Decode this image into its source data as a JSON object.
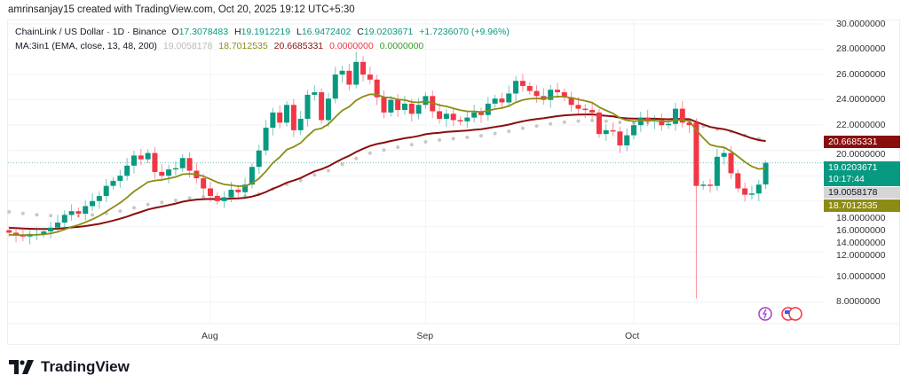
{
  "credit": "amrinsanjay15 created with TradingView.com, Oct 20, 2025 19:12 UTC+5:30",
  "legend": {
    "symbol": "ChainLink / US Dollar · 1D · Binance",
    "o_label": "O",
    "o": "17.3078483",
    "h_label": "H",
    "h": "19.1912219",
    "l_label": "L",
    "l": "16.9472402",
    "c_label": "C",
    "c": "19.0203671",
    "change": "+1.7236070 (+9.96%)",
    "ma_title": "MA:3in1 (EMA, close, 13, 48, 200)",
    "ma_values": [
      "19.0058178",
      "18.7012535",
      "20.6685331",
      "0.0000000",
      "0.0000000"
    ]
  },
  "badges": {
    "ema48": "20.6685331",
    "last_price": "19.0203671",
    "countdown": "10:17:44",
    "ema200": "19.0058178",
    "ema13": "18.7012535"
  },
  "logo_text": "TradingView",
  "colors": {
    "up": "#089981",
    "down": "#f23645",
    "ema13": "#8c8c14",
    "ema48": "#8b0e0e",
    "ema200": "#c8c8c8"
  },
  "chart_data": {
    "type": "candlestick",
    "title": "ChainLink / US Dollar · 1D · Binance",
    "y_ticks": [
      "30.0000000",
      "28.0000000",
      "26.0000000",
      "24.0000000",
      "22.0000000",
      "20.0000000",
      "18.0000000",
      "16.0000000",
      "14.0000000",
      "12.0000000",
      "10.0000000",
      "8.0000000"
    ],
    "ylim": [
      8,
      30
    ],
    "x_ticks": [
      "Aug",
      "Sep",
      "Oct"
    ],
    "x_tick_index": [
      0,
      31,
      61
    ],
    "first_index": -29,
    "closes": [
      13.5,
      13.3,
      13.2,
      13.4,
      13.4,
      13.6,
      13.9,
      14.3,
      14.9,
      15.2,
      15.0,
      15.6,
      16.0,
      16.4,
      17.2,
      17.6,
      18.0,
      18.8,
      19.6,
      19.3,
      19.8,
      18.3,
      18.0,
      18.5,
      18.6,
      19.4,
      18.4,
      17.8,
      17.0,
      16.4,
      16.0,
      16.3,
      16.9,
      16.7,
      17.3,
      18.7,
      20.0,
      21.8,
      23.0,
      22.2,
      23.6,
      21.6,
      22.5,
      24.4,
      24.6,
      22.4,
      24.1,
      26.0,
      26.3,
      25.2,
      27.0,
      26.0,
      25.6,
      24.2,
      23.0,
      24.0,
      23.2,
      23.7,
      22.9,
      23.6,
      24.3,
      23.1,
      22.5,
      22.9,
      22.4,
      22.3,
      22.6,
      23.0,
      22.8,
      23.7,
      24.1,
      23.8,
      24.5,
      25.5,
      25.1,
      24.7,
      24.3,
      24.0,
      24.8,
      24.6,
      24.2,
      23.6,
      23.3,
      23.2,
      23.0,
      21.3,
      21.6,
      21.5,
      20.4,
      21.2,
      22.0,
      22.6,
      22.3,
      22.4,
      22.0,
      22.1,
      23.3,
      22.2,
      22.0,
      17.2,
      17.3,
      17.2,
      19.5,
      19.8,
      18.2,
      17.0,
      16.5,
      16.6,
      17.3,
      19.02
    ],
    "first_open": 13.7,
    "overrides": {
      "50": {
        "h": 27.8
      },
      "99": {
        "o": 22.2,
        "l": 8.3
      },
      "109": {
        "o": 17.31,
        "h": 19.19,
        "l": 16.95
      }
    },
    "ema_seed": {
      "ema13": 13.3,
      "ema48": 13.9,
      "ema200": 15.2
    },
    "series": [
      {
        "name": "EMA 13",
        "last": 18.7012535
      },
      {
        "name": "EMA 48",
        "last": 20.6685331
      },
      {
        "name": "EMA 200",
        "last": 19.0058178
      }
    ],
    "last_price": 19.0203671
  }
}
